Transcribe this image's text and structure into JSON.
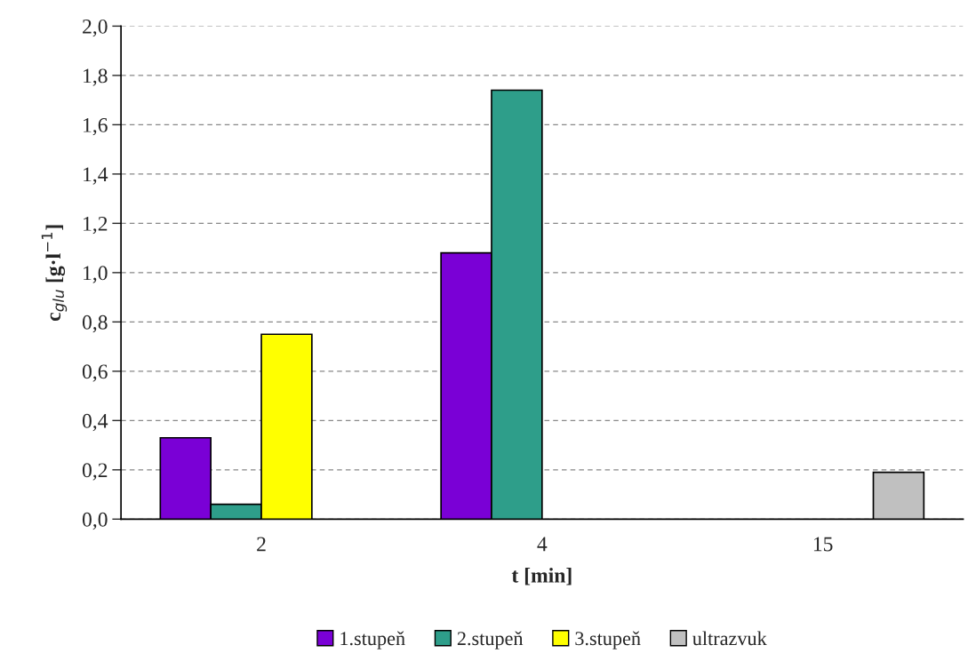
{
  "chart_data": {
    "type": "bar",
    "xlabel": "t [min]",
    "ylabel": "c$_{glu}$ [g·l$^{−1}$]",
    "categories": [
      "2",
      "4",
      "15"
    ],
    "series": [
      {
        "name": "1.stupeň",
        "color": "#7a00d6",
        "values": [
          0.33,
          1.08,
          null
        ]
      },
      {
        "name": "2.stupeň",
        "color": "#2e9e8a",
        "values": [
          0.06,
          1.74,
          null
        ]
      },
      {
        "name": "3.stupeň",
        "color": "#ffff00",
        "values": [
          0.75,
          null,
          null
        ]
      },
      {
        "name": "ultrazvuk",
        "color": "#c0c0c0",
        "values": [
          null,
          null,
          0.19
        ]
      }
    ],
    "ylim": [
      0,
      2.0
    ],
    "yticks": [
      {
        "value": 0,
        "label": "0,0"
      },
      {
        "value": 0.2,
        "label": "0,2"
      },
      {
        "value": 0.4,
        "label": "0,4"
      },
      {
        "value": 0.6,
        "label": "0,6"
      },
      {
        "value": 0.8,
        "label": "0,8"
      },
      {
        "value": 1.0,
        "label": "1,0"
      },
      {
        "value": 1.2,
        "label": "1,2"
      },
      {
        "value": 1.4,
        "label": "1,4"
      },
      {
        "value": 1.6,
        "label": "1,6"
      },
      {
        "value": 1.8,
        "label": "1,8"
      },
      {
        "value": 2.0,
        "label": "2,0"
      }
    ],
    "grid": "y",
    "legend": "bottom"
  }
}
